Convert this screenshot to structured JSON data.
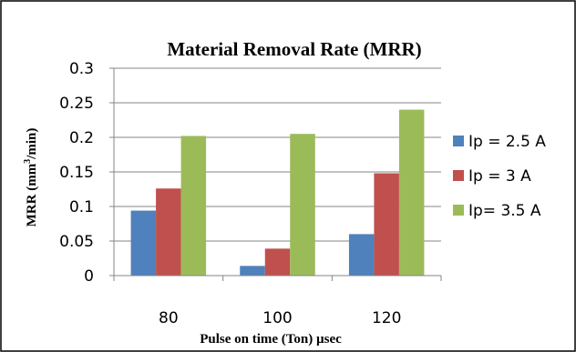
{
  "chart_data": {
    "type": "bar",
    "title": "Material Removal Rate (MRR)",
    "xlabel": "Pulse on time  (Ton) µsec",
    "ylabel": {
      "prefix": "MRR (mm",
      "sup": "3",
      "suffix": "/min)"
    },
    "categories": [
      "80",
      "100",
      "120"
    ],
    "ylim": [
      0,
      0.3
    ],
    "yticks": [
      "0",
      "0.05",
      "0.1",
      "0.15",
      "0.2",
      "0.25",
      "0.3"
    ],
    "grid": true,
    "legend_position": "right",
    "series": [
      {
        "name": "Ip = 2.5 A",
        "color": "#4f81bd",
        "values": [
          0.094,
          0.014,
          0.06
        ]
      },
      {
        "name": "Ip = 3 A",
        "color": "#c0504d",
        "values": [
          0.126,
          0.039,
          0.148
        ]
      },
      {
        "name": "Ip= 3.5 A",
        "color": "#9bbb59",
        "values": [
          0.202,
          0.205,
          0.24
        ]
      }
    ]
  }
}
